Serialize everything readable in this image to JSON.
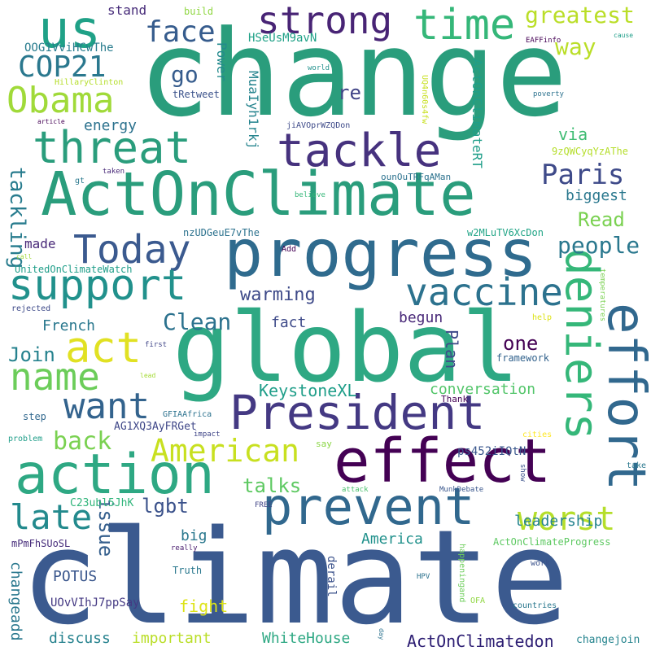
{
  "words": [
    {
      "id": "change",
      "text": "change",
      "color": "#2a9d7c"
    },
    {
      "id": "climate",
      "text": "climate",
      "color": "#3b5a8f"
    },
    {
      "id": "global",
      "text": "global",
      "color": "#2ea883"
    },
    {
      "id": "actonclimate",
      "text": "ActOnClimate",
      "color": "#2a9d7c"
    },
    {
      "id": "progress",
      "text": "progress",
      "color": "#2f6b8e"
    },
    {
      "id": "effect",
      "text": "effect",
      "color": "#440154"
    },
    {
      "id": "action",
      "text": "action",
      "color": "#2ea883"
    },
    {
      "id": "prevent",
      "text": "prevent",
      "color": "#31688e"
    },
    {
      "id": "president",
      "text": "President",
      "color": "#443983"
    },
    {
      "id": "deniers",
      "text": "deniers",
      "color": "#35b779"
    },
    {
      "id": "effort",
      "text": "effort",
      "color": "#31688e"
    },
    {
      "id": "tackle",
      "text": "tackle",
      "color": "#46327e"
    },
    {
      "id": "threat",
      "text": "threat",
      "color": "#2a9d7c"
    },
    {
      "id": "today",
      "text": "Today",
      "color": "#3b5a8f"
    },
    {
      "id": "support",
      "text": "support",
      "color": "#21918c"
    },
    {
      "id": "vaccine",
      "text": "vaccine",
      "color": "#2c728e"
    },
    {
      "id": "strong",
      "text": "strong",
      "color": "#482475"
    },
    {
      "id": "time",
      "text": "time",
      "color": "#35b779"
    },
    {
      "id": "us",
      "text": "us",
      "color": "#1fa187"
    },
    {
      "id": "obama",
      "text": "Obama",
      "color": "#a0da39"
    },
    {
      "id": "cop21",
      "text": "COP21",
      "color": "#2a788e"
    },
    {
      "id": "act",
      "text": "act",
      "color": "#e1e123"
    },
    {
      "id": "name",
      "text": "name",
      "color": "#6ccd5a"
    },
    {
      "id": "want",
      "text": "want",
      "color": "#33638d"
    },
    {
      "id": "american",
      "text": "American",
      "color": "#c8e020"
    },
    {
      "id": "late",
      "text": "late",
      "color": "#238a8d"
    },
    {
      "id": "worst",
      "text": "worst",
      "color": "#b5de2b"
    },
    {
      "id": "paris",
      "text": "Paris",
      "color": "#3e4a89"
    },
    {
      "id": "face",
      "text": "face",
      "color": "#365c8d"
    },
    {
      "id": "greatest",
      "text": "greatest",
      "color": "#bade28"
    },
    {
      "id": "way",
      "text": "way",
      "color": "#bade28"
    },
    {
      "id": "back",
      "text": "back",
      "color": "#7ad151"
    },
    {
      "id": "talks",
      "text": "talks",
      "color": "#5ec962"
    },
    {
      "id": "people",
      "text": "people",
      "color": "#2a788e"
    },
    {
      "id": "clean",
      "text": "Clean",
      "color": "#2c728e"
    },
    {
      "id": "read",
      "text": "Read",
      "color": "#7ad151"
    },
    {
      "id": "one",
      "text": "one",
      "color": "#440154"
    },
    {
      "id": "join",
      "text": "Join",
      "color": "#26828e"
    },
    {
      "id": "warming",
      "text": "warming",
      "color": "#3e4a89"
    },
    {
      "id": "tackling",
      "text": "tackling",
      "color": "#287c8e"
    },
    {
      "id": "go",
      "text": "go",
      "color": "#365c8d"
    },
    {
      "id": "re",
      "text": "re",
      "color": "#414487"
    },
    {
      "id": "energy",
      "text": "energy",
      "color": "#2c728e"
    },
    {
      "id": "via",
      "text": "via",
      "color": "#3fbc73"
    },
    {
      "id": "biggest",
      "text": "biggest",
      "color": "#2a788e"
    },
    {
      "id": "lgbt",
      "text": "lgbt",
      "color": "#3b528b"
    },
    {
      "id": "issue",
      "text": "issue",
      "color": "#355f8d"
    },
    {
      "id": "big",
      "text": "big",
      "color": "#2a788e"
    },
    {
      "id": "keystonexl",
      "text": "KeystoneXL",
      "color": "#1f9e89"
    },
    {
      "id": "conversation",
      "text": "conversation",
      "color": "#52c569"
    },
    {
      "id": "leadership",
      "text": "leadership",
      "color": "#25848e"
    },
    {
      "id": "america",
      "text": "America",
      "color": "#21918c"
    },
    {
      "id": "potus",
      "text": "POTUS",
      "color": "#39568c"
    },
    {
      "id": "fight",
      "text": "fight",
      "color": "#dde318"
    },
    {
      "id": "important",
      "text": "important",
      "color": "#bade28"
    },
    {
      "id": "whitehouse",
      "text": "WhiteHouse",
      "color": "#2ea883"
    },
    {
      "id": "actonclimatedon",
      "text": "ActOnClimatedon",
      "color": "#2d1e73"
    },
    {
      "id": "discuss",
      "text": "discuss",
      "color": "#26828e"
    },
    {
      "id": "changeadd",
      "text": "changeadd",
      "color": "#2a788e"
    },
    {
      "id": "plan",
      "text": "Plan",
      "color": "#3e4a89"
    },
    {
      "id": "begun",
      "text": "begun",
      "color": "#482878"
    },
    {
      "id": "fact",
      "text": "fact",
      "color": "#3e4a89"
    },
    {
      "id": "french",
      "text": "French",
      "color": "#2a788e"
    },
    {
      "id": "made",
      "text": "made",
      "color": "#482878"
    },
    {
      "id": "stand",
      "text": "stand",
      "color": "#472c7a"
    },
    {
      "id": "power",
      "text": "Power",
      "color": "#238a8d"
    },
    {
      "id": "muaiyh1rkj",
      "text": "MuaIyh1rkj",
      "color": "#25848e"
    },
    {
      "id": "hseusm9avn",
      "text": "HSeUsM9avN",
      "color": "#1fa187"
    },
    {
      "id": "actonclimatert",
      "text": "ActOnClimateRT",
      "color": "#1f9e89"
    },
    {
      "id": "oog1vvihcwthe",
      "text": "OOG1VviHCwThe",
      "color": "#287c8e"
    },
    {
      "id": "unitedonclimatewatch",
      "text": "UnitedOnClimateWatch",
      "color": "#1f9e89"
    },
    {
      "id": "nzudgeue7vthe",
      "text": "nzUDGeuE7vThe",
      "color": "#2c728e"
    },
    {
      "id": "w2mlutv6xcdon",
      "text": "w2MLuTV6XcDon",
      "color": "#20a486"
    },
    {
      "id": "ag1xq3ayfrget",
      "text": "AG1XQ3AyFRGet",
      "color": "#3f4788"
    },
    {
      "id": "ps452iiotn",
      "text": "ps452iIOtN",
      "color": "#39568c"
    },
    {
      "id": "c23ubl5jhk",
      "text": "C23ubl5JhK",
      "color": "#31b57b"
    },
    {
      "id": "uovvihj7ppsay",
      "text": "UOvVIhJ7ppSay",
      "color": "#443983"
    },
    {
      "id": "mpmfhsuosl",
      "text": "mPmFhSUoSL",
      "color": "#472d7b"
    },
    {
      "id": "actonclimateprogress",
      "text": "ActOnClimateProgress",
      "color": "#5ec962"
    },
    {
      "id": "changejoin",
      "text": "changejoin",
      "color": "#25848e"
    },
    {
      "id": "truth",
      "text": "Truth",
      "color": "#2a788e"
    },
    {
      "id": "derail",
      "text": "derail",
      "color": "#3b528b"
    },
    {
      "id": "framework",
      "text": "framework",
      "color": "#33638d"
    },
    {
      "id": "thank",
      "text": "Thank",
      "color": "#440154"
    },
    {
      "id": "step",
      "text": "step",
      "color": "#31688e"
    },
    {
      "id": "problem",
      "text": "problem",
      "color": "#1f9e89"
    },
    {
      "id": "gfiaafrica",
      "text": "GFIAAfrica",
      "color": "#2c728e"
    },
    {
      "id": "impact",
      "text": "impact",
      "color": "#404688"
    },
    {
      "id": "say",
      "text": "say",
      "color": "#8bd646"
    },
    {
      "id": "cities",
      "text": "cities",
      "color": "#fde725"
    },
    {
      "id": "show",
      "text": "show",
      "color": "#3b528b"
    },
    {
      "id": "take",
      "text": "take",
      "color": "#2a788e"
    },
    {
      "id": "attack",
      "text": "attack",
      "color": "#4ac16d"
    },
    {
      "id": "munkdebate",
      "text": "MunkDebate",
      "color": "#39568c"
    },
    {
      "id": "free",
      "text": "FREE",
      "color": "#414487"
    },
    {
      "id": "really",
      "text": "really",
      "color": "#481b6d"
    },
    {
      "id": "hpv",
      "text": "HPV",
      "color": "#2c728e"
    },
    {
      "id": "ofa",
      "text": "OFA",
      "color": "#90d743"
    },
    {
      "id": "happeningand",
      "text": "happeningand",
      "color": "#6ccd5a"
    },
    {
      "id": "work",
      "text": "work",
      "color": "#3b528b"
    },
    {
      "id": "countries",
      "text": "countries",
      "color": "#2a788e"
    },
    {
      "id": "day",
      "text": "day",
      "color": "#2c728e"
    },
    {
      "id": "hillaryclinton",
      "text": "HillaryClinton",
      "color": "#b5de2b"
    },
    {
      "id": "tretweet",
      "text": "tRetweet",
      "color": "#3b528b"
    },
    {
      "id": "build",
      "text": "build",
      "color": "#90d743"
    },
    {
      "id": "world",
      "text": "world",
      "color": "#21918c"
    },
    {
      "id": "eaffinfo",
      "text": "EAFFinfo",
      "color": "#440154"
    },
    {
      "id": "cause",
      "text": "cause",
      "color": "#1f9e89"
    },
    {
      "id": "poverty",
      "text": "poverty",
      "color": "#2c728e"
    },
    {
      "id": "article",
      "text": "article",
      "color": "#440154"
    },
    {
      "id": "jiavoprwzqdon",
      "text": "jiAVOprWZQDon",
      "color": "#3e4a89"
    },
    {
      "id": "uq4n60s4fw",
      "text": "UQ4n60s4fw",
      "color": "#c8e020"
    },
    {
      "id": "9zqwcyqyzathe",
      "text": "9zQWCyqYzAThe",
      "color": "#b5de2b"
    },
    {
      "id": "gt",
      "text": "gt",
      "color": "#2a788e"
    },
    {
      "id": "taken",
      "text": "taken",
      "color": "#482878"
    },
    {
      "id": "ounoutrfqaman",
      "text": "ounOuTRFqAMan",
      "color": "#2c728e"
    },
    {
      "id": "believe",
      "text": "believe",
      "color": "#35b779"
    },
    {
      "id": "add",
      "text": "Add",
      "color": "#440154"
    },
    {
      "id": "call",
      "text": "call",
      "color": "#9fda3a"
    },
    {
      "id": "rejected",
      "text": "rejected",
      "color": "#3e4a89"
    },
    {
      "id": "first",
      "text": "first",
      "color": "#404688"
    },
    {
      "id": "lead",
      "text": "lead",
      "color": "#a5db36"
    },
    {
      "id": "temperatures",
      "text": "temperatures",
      "color": "#7ad151"
    },
    {
      "id": "help",
      "text": "help",
      "color": "#dde318"
    }
  ]
}
